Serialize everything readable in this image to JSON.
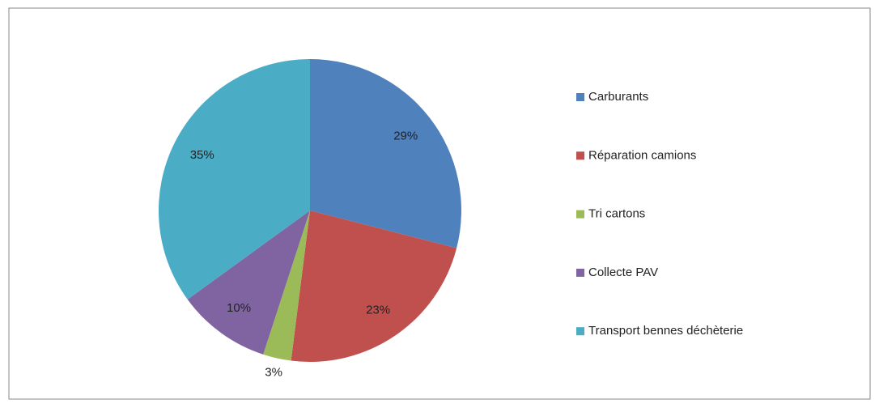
{
  "chart_data": {
    "type": "pie",
    "categories": [
      "Carburants",
      "Réparation camions",
      "Tri cartons",
      "Collecte PAV",
      "Transport bennes déchèterie"
    ],
    "values": [
      29,
      23,
      3,
      10,
      35
    ],
    "value_labels": [
      "29%",
      "23%",
      "3%",
      "10%",
      "35%"
    ],
    "colors": [
      "#4f81bd",
      "#c0504d",
      "#9bbb59",
      "#8064a2",
      "#4bacc6"
    ],
    "legend": "right"
  }
}
